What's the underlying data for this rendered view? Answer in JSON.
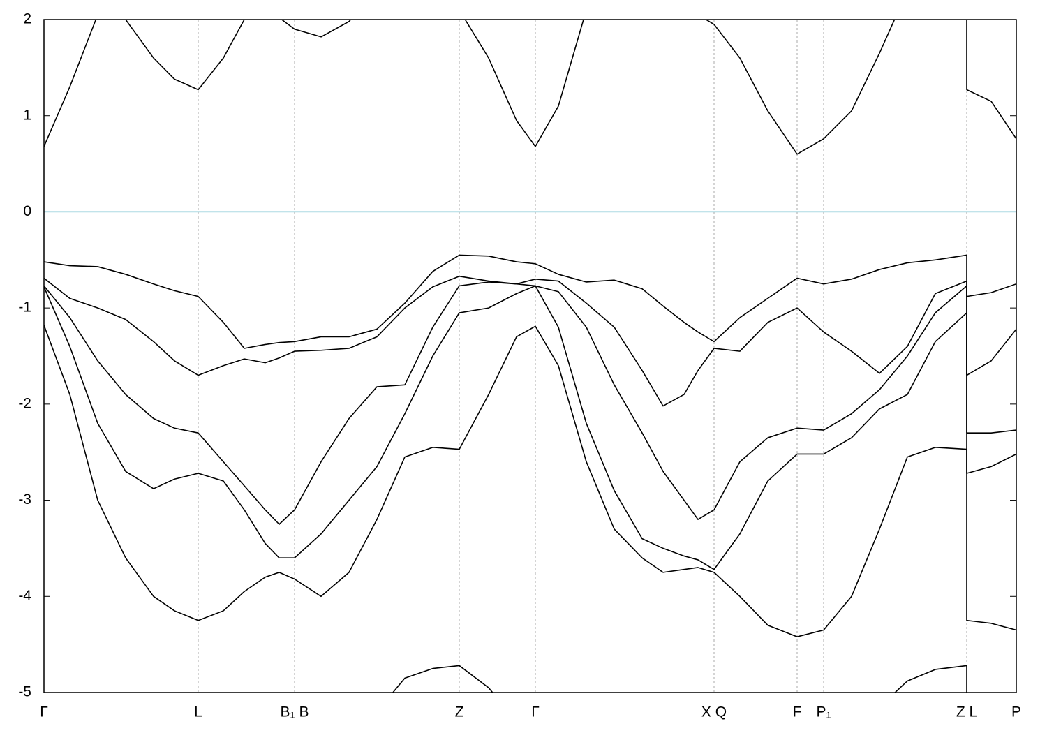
{
  "chart_data": {
    "type": "line",
    "x": [
      0,
      37,
      77,
      117,
      157,
      187,
      221,
      257,
      287,
      317,
      337,
      359,
      397,
      437,
      477,
      517,
      557,
      595,
      637,
      677,
      704,
      737,
      777,
      817,
      857,
      887,
      917,
      937,
      960,
      997,
      1037,
      1079,
      1117,
      1157,
      1197,
      1237,
      1277,
      1322,
      1322,
      1357,
      1393
    ],
    "xlim": [
      0,
      1393
    ],
    "xticks": [
      {
        "value": 0,
        "label": "Γ"
      },
      {
        "value": 221,
        "label": "L"
      },
      {
        "value": 359,
        "label": "B₁ B"
      },
      {
        "value": 595,
        "label": "Z"
      },
      {
        "value": 704,
        "label": "Γ"
      },
      {
        "value": 960,
        "label": "X Q"
      },
      {
        "value": 1079,
        "label": "F"
      },
      {
        "value": 1117,
        "label": "P₁"
      },
      {
        "value": 1322,
        "label": "Z L"
      },
      {
        "value": 1393,
        "label": "P"
      }
    ],
    "ylim": [
      -5,
      2
    ],
    "yticks": [
      2,
      1,
      0,
      -1,
      -2,
      -3,
      -4,
      -5
    ],
    "grid": true,
    "hline": {
      "y": 0,
      "color": "#5ab4c9"
    },
    "series": [
      {
        "color": "#000000",
        "values": [
          0.68,
          1.3,
          2.05,
          2.0,
          1.6,
          1.38,
          1.27,
          1.6,
          2.0,
          2.2,
          2.02,
          1.9,
          1.82,
          1.98,
          2.3,
          2.5,
          2.5,
          2.1,
          1.6,
          0.95,
          0.68,
          1.1,
          2.1,
          2.4,
          2.3,
          2.25,
          2.15,
          2.05,
          1.95,
          1.6,
          1.05,
          0.6,
          0.76,
          1.05,
          1.65,
          2.3,
          2.6,
          2.5,
          1.27,
          1.15,
          0.76
        ]
      },
      {
        "color": "#000000",
        "values": [
          -0.52,
          -0.56,
          -0.57,
          -0.65,
          -0.75,
          -0.82,
          -0.88,
          -1.15,
          -1.42,
          -1.38,
          -1.36,
          -1.35,
          -1.3,
          -1.3,
          -1.22,
          -0.95,
          -0.62,
          -0.45,
          -0.46,
          -0.52,
          -0.54,
          -0.65,
          -0.73,
          -0.71,
          -0.8,
          -0.98,
          -1.15,
          -1.25,
          -1.35,
          -1.1,
          -0.9,
          -0.69,
          -0.75,
          -0.7,
          -0.6,
          -0.53,
          -0.5,
          -0.45,
          -0.88,
          -0.84,
          -0.75
        ]
      },
      {
        "color": "#000000",
        "values": [
          -0.69,
          -0.9,
          -1.0,
          -1.12,
          -1.35,
          -1.55,
          -1.7,
          -1.6,
          -1.53,
          -1.57,
          -1.52,
          -1.45,
          -1.44,
          -1.42,
          -1.3,
          -1.0,
          -0.78,
          -0.67,
          -0.72,
          -0.75,
          -0.7,
          -0.72,
          -0.95,
          -1.2,
          -1.65,
          -2.02,
          -1.9,
          -1.65,
          -1.42,
          -1.45,
          -1.15,
          -1.0,
          -1.25,
          -1.45,
          -1.68,
          -1.4,
          -0.85,
          -0.72,
          -1.7,
          -1.55,
          -1.22
        ]
      },
      {
        "color": "#000000",
        "values": [
          -0.77,
          -1.1,
          -1.55,
          -1.9,
          -2.15,
          -2.25,
          -2.3,
          -2.6,
          -2.85,
          -3.1,
          -3.25,
          -3.1,
          -2.6,
          -2.15,
          -1.82,
          -1.8,
          -1.2,
          -0.77,
          -0.73,
          -0.75,
          -0.77,
          -0.83,
          -1.2,
          -1.8,
          -2.3,
          -2.7,
          -3.0,
          -3.2,
          -3.1,
          -2.6,
          -2.35,
          -2.25,
          -2.27,
          -2.1,
          -1.85,
          -1.5,
          -1.05,
          -0.77,
          -2.3,
          -2.3,
          -2.27
        ]
      },
      {
        "color": "#000000",
        "values": [
          -0.78,
          -1.4,
          -2.2,
          -2.7,
          -2.88,
          -2.78,
          -2.72,
          -2.8,
          -3.1,
          -3.45,
          -3.6,
          -3.6,
          -3.35,
          -3.0,
          -2.65,
          -2.1,
          -1.5,
          -1.05,
          -1.0,
          -0.85,
          -0.77,
          -1.2,
          -2.2,
          -2.9,
          -3.4,
          -3.5,
          -3.58,
          -3.62,
          -3.72,
          -3.35,
          -2.8,
          -2.52,
          -2.52,
          -2.35,
          -2.05,
          -1.9,
          -1.35,
          -1.05,
          -2.72,
          -2.65,
          -2.52
        ]
      },
      {
        "color": "#000000",
        "values": [
          -1.18,
          -1.9,
          -3.0,
          -3.6,
          -4.0,
          -4.15,
          -4.25,
          -4.15,
          -3.95,
          -3.8,
          -3.75,
          -3.82,
          -4.0,
          -3.75,
          -3.2,
          -2.55,
          -2.45,
          -2.47,
          -1.9,
          -1.3,
          -1.19,
          -1.6,
          -2.6,
          -3.3,
          -3.6,
          -3.75,
          -3.72,
          -3.7,
          -3.75,
          -4.0,
          -4.3,
          -4.42,
          -4.35,
          -4.0,
          -3.3,
          -2.55,
          -2.45,
          -2.47,
          -4.25,
          -4.28,
          -4.35
        ]
      },
      {
        "color": "#000000",
        "values": [
          null,
          null,
          null,
          null,
          null,
          null,
          null,
          null,
          null,
          null,
          null,
          null,
          null,
          null,
          -5.2,
          -4.85,
          -4.75,
          -4.72,
          -4.95,
          -5.3,
          null,
          null,
          null,
          null,
          null,
          null,
          null,
          null,
          null,
          null,
          null,
          null,
          null,
          null,
          -5.15,
          -4.88,
          -4.76,
          -4.72,
          -5.3,
          null,
          null
        ]
      }
    ]
  }
}
